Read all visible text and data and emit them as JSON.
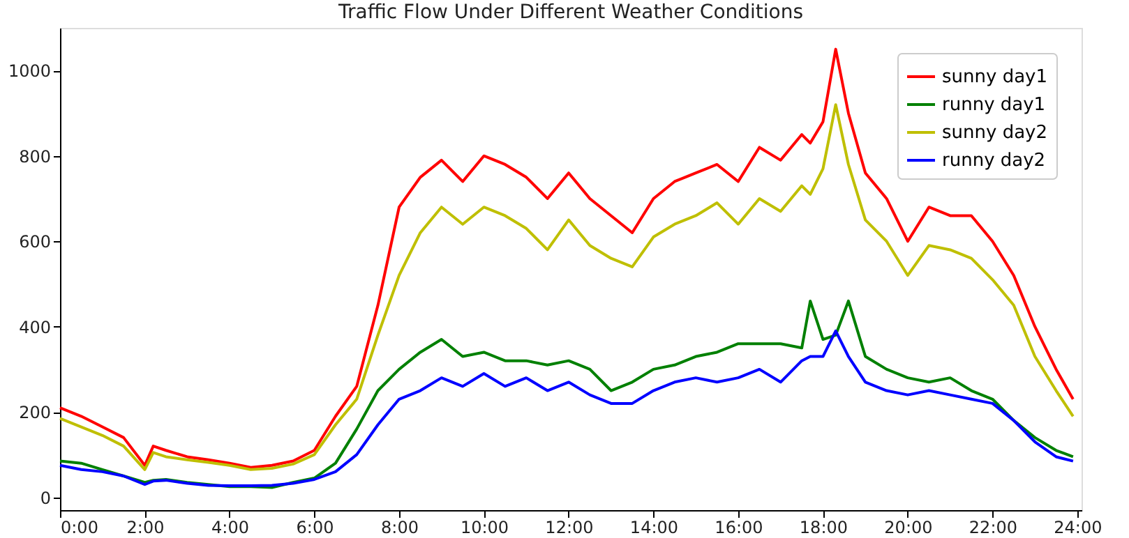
{
  "chart_data": {
    "type": "line",
    "title": "Traffic Flow Under Different Weather Conditions",
    "x": [
      0,
      0.5,
      1,
      1.5,
      2,
      2.2,
      2.5,
      3,
      3.5,
      4,
      4.5,
      5,
      5.5,
      6,
      6.5,
      7,
      7.5,
      8,
      8.5,
      9,
      9.5,
      10,
      10.5,
      11,
      11.5,
      12,
      12.5,
      13,
      13.5,
      14,
      14.5,
      15,
      15.5,
      16,
      16.5,
      17,
      17.5,
      17.7,
      18,
      18.3,
      18.6,
      19,
      19.5,
      20,
      20.5,
      21,
      21.5,
      22,
      22.5,
      23,
      23.5,
      23.9
    ],
    "series": [
      {
        "name": "sunny day1",
        "color": "#ff0000",
        "values": [
          210,
          190,
          165,
          140,
          75,
          120,
          110,
          95,
          88,
          80,
          70,
          75,
          85,
          110,
          190,
          260,
          450,
          680,
          750,
          790,
          740,
          800,
          780,
          750,
          700,
          760,
          700,
          660,
          620,
          700,
          740,
          760,
          780,
          740,
          820,
          790,
          850,
          830,
          880,
          1050,
          900,
          760,
          700,
          600,
          680,
          660,
          660,
          600,
          520,
          400,
          300,
          230
        ]
      },
      {
        "name": "runny day1",
        "color": "#008000",
        "values": [
          85,
          80,
          65,
          50,
          35,
          40,
          42,
          35,
          30,
          25,
          25,
          23,
          35,
          45,
          80,
          160,
          250,
          300,
          340,
          370,
          330,
          340,
          320,
          320,
          310,
          320,
          300,
          250,
          270,
          300,
          310,
          330,
          340,
          360,
          360,
          360,
          350,
          460,
          370,
          380,
          460,
          330,
          300,
          280,
          270,
          280,
          250,
          230,
          180,
          140,
          110,
          95
        ]
      },
      {
        "name": "sunny day2",
        "color": "#bfbf00",
        "values": [
          185,
          165,
          145,
          120,
          65,
          105,
          95,
          88,
          82,
          75,
          65,
          68,
          78,
          100,
          170,
          230,
          380,
          520,
          620,
          680,
          640,
          680,
          660,
          630,
          580,
          650,
          590,
          560,
          540,
          610,
          640,
          660,
          690,
          640,
          700,
          670,
          730,
          710,
          770,
          920,
          780,
          650,
          600,
          520,
          590,
          580,
          560,
          510,
          450,
          330,
          250,
          190
        ]
      },
      {
        "name": "runny day2",
        "color": "#0000ff",
        "values": [
          75,
          65,
          60,
          50,
          30,
          38,
          40,
          33,
          28,
          27,
          27,
          28,
          33,
          42,
          60,
          100,
          170,
          230,
          250,
          280,
          260,
          290,
          260,
          280,
          250,
          270,
          240,
          220,
          220,
          250,
          270,
          280,
          270,
          280,
          300,
          270,
          320,
          330,
          330,
          390,
          330,
          270,
          250,
          240,
          250,
          240,
          230,
          220,
          180,
          130,
          95,
          85
        ]
      }
    ],
    "xlim": [
      0,
      24.1
    ],
    "xticks": [
      {
        "value": 0,
        "label": "0:00"
      },
      {
        "value": 2,
        "label": "2:00"
      },
      {
        "value": 4,
        "label": "4:00"
      },
      {
        "value": 6,
        "label": "6:00"
      },
      {
        "value": 8,
        "label": "8:00"
      },
      {
        "value": 10,
        "label": "10:00"
      },
      {
        "value": 12,
        "label": "12:00"
      },
      {
        "value": 14,
        "label": "14:00"
      },
      {
        "value": 16,
        "label": "16:00"
      },
      {
        "value": 18,
        "label": "18:00"
      },
      {
        "value": 20,
        "label": "20:00"
      },
      {
        "value": 22,
        "label": "22:00"
      },
      {
        "value": 24,
        "label": "24:00"
      }
    ],
    "ylim": [
      -30,
      1100
    ],
    "yticks": [
      0,
      200,
      400,
      600,
      800,
      1000
    ],
    "grid": false,
    "legend": "top right",
    "line_style": "solid",
    "marker": "none"
  }
}
